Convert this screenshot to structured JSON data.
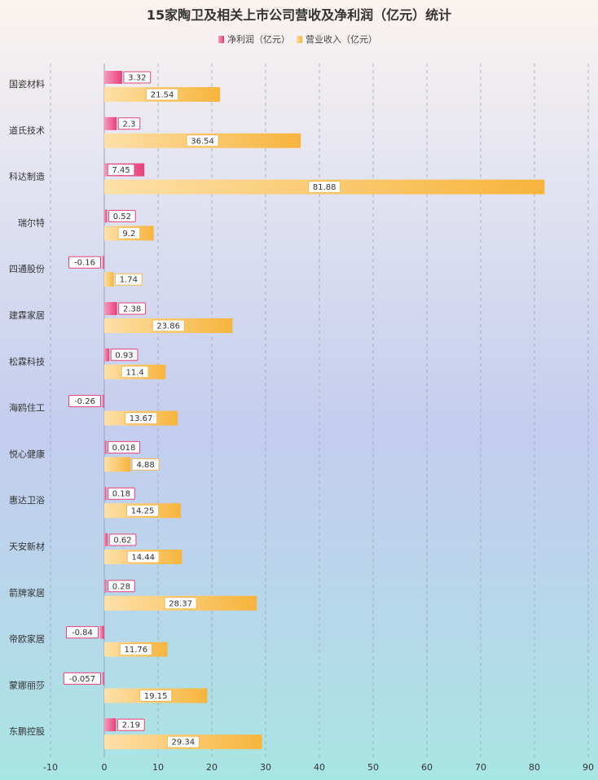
{
  "chart_data": {
    "type": "bar",
    "orientation": "horizontal",
    "title": "15家陶卫及相关上市公司营收及净利润（亿元）统计",
    "categories": [
      "国瓷材料",
      "道氏技术",
      "科达制造",
      "瑞尔特",
      "四通股份",
      "建霖家居",
      "松霖科技",
      "海鸥住工",
      "悦心健康",
      "惠达卫浴",
      "天安新材",
      "箭牌家居",
      "帝欧家居",
      "蒙娜丽莎",
      "东鹏控股"
    ],
    "series": [
      {
        "name": "净利润（亿元）",
        "color": "#e8407a",
        "values": [
          3.32,
          2.3,
          7.45,
          0.52,
          -0.16,
          2.38,
          0.93,
          -0.26,
          0.018,
          0.18,
          0.62,
          0.28,
          -0.84,
          -0.057,
          2.19
        ]
      },
      {
        "name": "营业收入（亿元）",
        "color": "#f7b84a",
        "values": [
          21.54,
          36.54,
          81.88,
          9.2,
          1.74,
          23.86,
          11.4,
          13.67,
          4.88,
          14.25,
          14.44,
          28.37,
          11.76,
          19.15,
          29.34
        ]
      }
    ],
    "xlim": [
      -10,
      90
    ],
    "xticks": [
      -10,
      0,
      10,
      20,
      30,
      40,
      50,
      60,
      70,
      80,
      90
    ],
    "legend": "top-center",
    "grid": true
  }
}
